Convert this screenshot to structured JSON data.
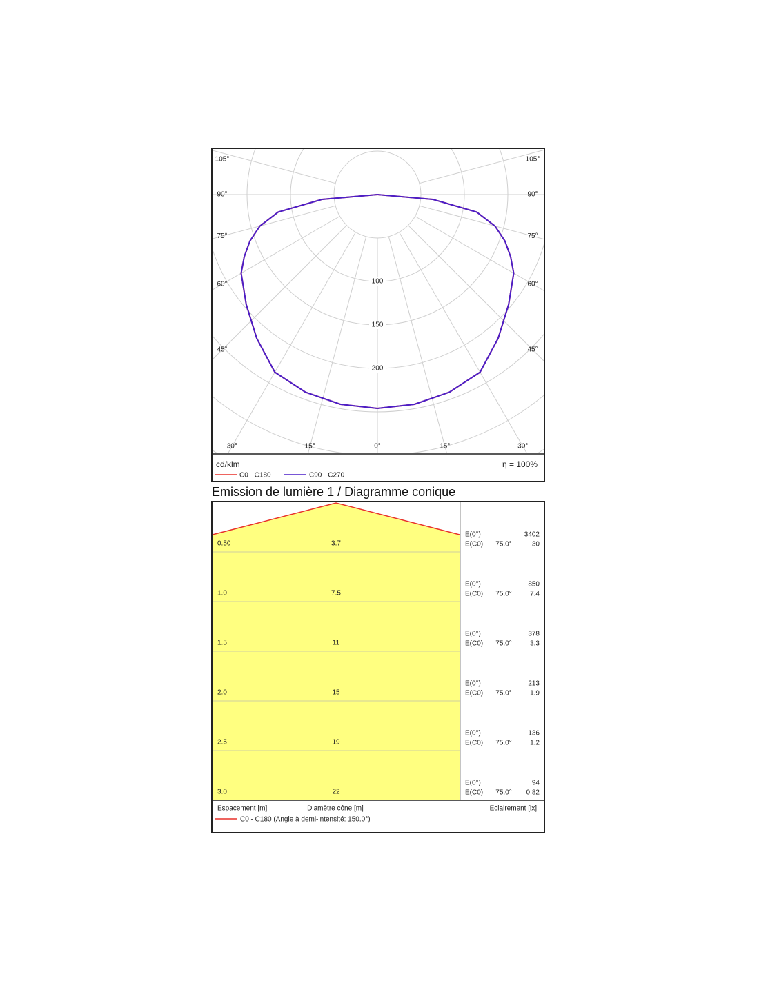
{
  "chart_data": [
    {
      "type": "polar",
      "unit": "cd/klm",
      "efficiency": "η = 100%",
      "angle_ticks": [
        {
          "value": 0,
          "label": "0°"
        },
        {
          "value": 15,
          "label": "15°"
        },
        {
          "value": 30,
          "label": "30°"
        },
        {
          "value": 45,
          "label": "45°"
        },
        {
          "value": 60,
          "label": "60°"
        },
        {
          "value": 75,
          "label": "75°"
        },
        {
          "value": 90,
          "label": "90°"
        },
        {
          "value": 105,
          "label": "105°"
        }
      ],
      "rticks": [
        100,
        150,
        200
      ],
      "rgrid": [
        50,
        100,
        150,
        200,
        250,
        300,
        350
      ],
      "angles": [
        0,
        10,
        20,
        30,
        40,
        50,
        60,
        65,
        70,
        75,
        80,
        85,
        90
      ],
      "series": [
        {
          "name": "C0 - C180",
          "color": "#e8302a",
          "values": [
            246,
            245,
            242,
            236,
            216,
            197,
            181,
            169,
            156,
            140,
            116,
            64,
            0
          ]
        },
        {
          "name": "C90 - C270",
          "color": "#4b1fc8",
          "values": [
            246,
            245,
            242,
            236,
            216,
            197,
            181,
            169,
            156,
            140,
            116,
            64,
            0
          ]
        }
      ]
    }
  ],
  "cone_diagram": {
    "title": "Emission de lumière 1 / Diagramme conique",
    "rows": [
      {
        "height": "0.50",
        "diameter": "3.7",
        "e0_label": "E(0°)",
        "e0": "3402",
        "ec0_label": "E(C0)",
        "angle": "75.0°",
        "ec0": "30"
      },
      {
        "height": "1.0",
        "diameter": "7.5",
        "e0_label": "E(0°)",
        "e0": "850",
        "ec0_label": "E(C0)",
        "angle": "75.0°",
        "ec0": "7.4"
      },
      {
        "height": "1.5",
        "diameter": "11",
        "e0_label": "E(0°)",
        "e0": "378",
        "ec0_label": "E(C0)",
        "angle": "75.0°",
        "ec0": "3.3"
      },
      {
        "height": "2.0",
        "diameter": "15",
        "e0_label": "E(0°)",
        "e0": "213",
        "ec0_label": "E(C0)",
        "angle": "75.0°",
        "ec0": "1.9"
      },
      {
        "height": "2.5",
        "diameter": "19",
        "e0_label": "E(0°)",
        "e0": "136",
        "ec0_label": "E(C0)",
        "angle": "75.0°",
        "ec0": "1.2"
      },
      {
        "height": "3.0",
        "diameter": "22",
        "e0_label": "E(0°)",
        "e0": "94",
        "ec0_label": "E(C0)",
        "angle": "75.0°",
        "ec0": "0.82"
      }
    ],
    "footer": {
      "spacing": "Espacement [m]",
      "diameter": "Diamètre cône [m]",
      "illuminance": "Eclairement [lx]",
      "legend": "C0 - C180 (Angle à demi-intensité: 150.0°)"
    }
  }
}
